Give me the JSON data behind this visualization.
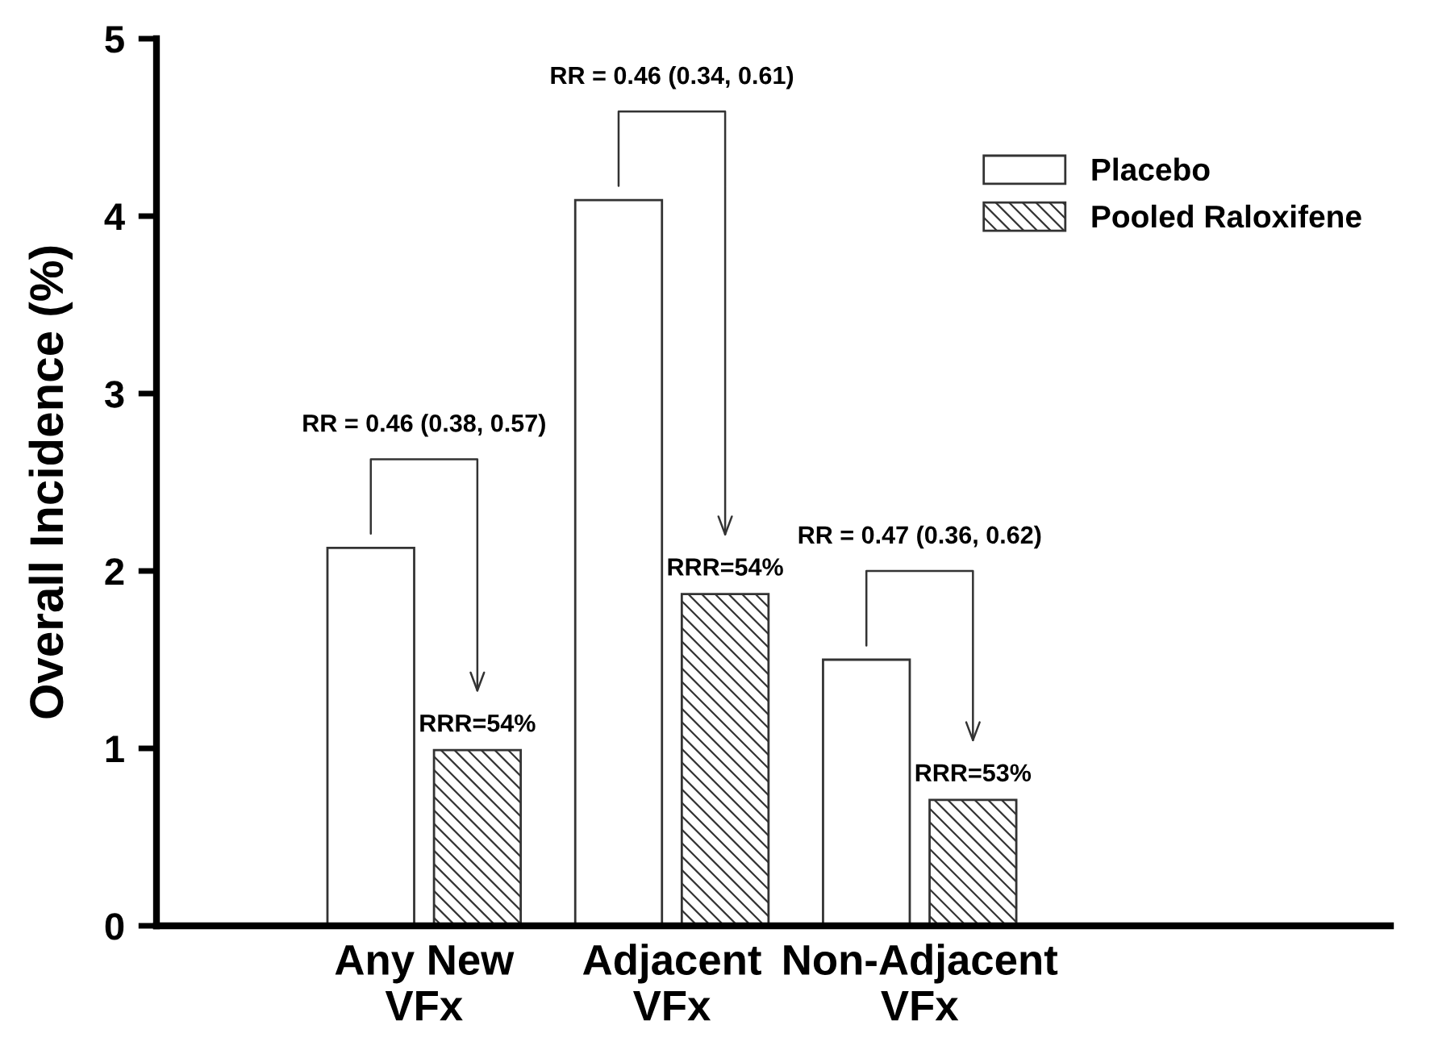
{
  "chart_data": {
    "type": "bar",
    "ylabel": "Overall Incidence (%)",
    "categories": [
      "Any New\nVFx",
      "Adjacent\nVFx",
      "Non-Adjacent\nVFx"
    ],
    "series": [
      {
        "name": "Placebo",
        "color": "#ffffff",
        "values": [
          2.13,
          4.09,
          1.5
        ]
      },
      {
        "name": "Pooled Raloxifene",
        "color": "#333333",
        "values": [
          0.99,
          1.87,
          0.71
        ]
      }
    ],
    "annotations": [
      "RR = 0.46 (0.38, 0.57)",
      "RR = 0.46 (0.34, 0.61)",
      "RR = 0.47 (0.36, 0.62)",
      "RRR=54%",
      "RRR=54%",
      "RRR=53%"
    ],
    "ylim": [
      0,
      5
    ],
    "yticks": [
      0,
      1,
      2,
      3,
      4,
      5
    ],
    "grid": false,
    "legend": "top right"
  }
}
